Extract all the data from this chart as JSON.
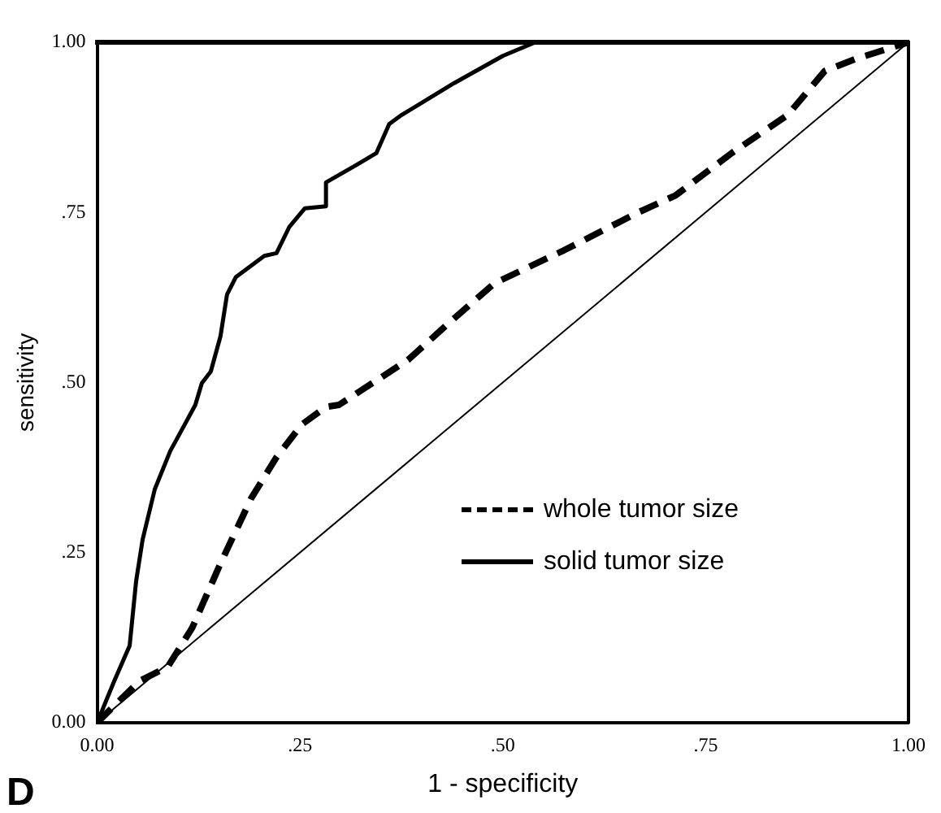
{
  "chart_data": {
    "type": "line",
    "xlabel": "1 - specificity",
    "ylabel": "sensitivity",
    "annotations": [
      "D"
    ],
    "xlim": [
      0,
      1
    ],
    "ylim": [
      0,
      1
    ],
    "xticks": [
      {
        "value": 0,
        "label": "0.00"
      },
      {
        "value": 0.25,
        "label": ".25"
      },
      {
        "value": 0.5,
        "label": ".50"
      },
      {
        "value": 0.75,
        "label": ".75"
      },
      {
        "value": 1,
        "label": "1.00"
      }
    ],
    "yticks": [
      {
        "value": 0,
        "label": "0.00"
      },
      {
        "value": 0.25,
        "label": ".25"
      },
      {
        "value": 0.5,
        "label": ".50"
      },
      {
        "value": 0.75,
        "label": ".75"
      },
      {
        "value": 1,
        "label": "1.00"
      }
    ],
    "grid": false,
    "legend": "bottom",
    "marker": "none",
    "series": [
      {
        "name": "whole tumor size",
        "color": "#000000",
        "line_style": "dashed",
        "x": [
          0,
          0.052,
          0.087,
          0.117,
          0.152,
          0.19,
          0.221,
          0.252,
          0.282,
          0.298,
          0.383,
          0.436,
          0.49,
          0.575,
          0.667,
          0.713,
          0.782,
          0.851,
          0.897,
          0.936,
          1
        ],
        "values": [
          0,
          0.061,
          0.082,
          0.139,
          0.234,
          0.33,
          0.39,
          0.438,
          0.464,
          0.467,
          0.533,
          0.59,
          0.646,
          0.694,
          0.75,
          0.775,
          0.837,
          0.893,
          0.958,
          0.976,
          1
        ]
      },
      {
        "name": "solid tumor size",
        "color": "#000000",
        "line_style": "solid",
        "x": [
          0,
          0.012,
          0.021,
          0.04,
          0.048,
          0.056,
          0.071,
          0.09,
          0.106,
          0.121,
          0.129,
          0.14,
          0.152,
          0.16,
          0.171,
          0.206,
          0.221,
          0.237,
          0.256,
          0.282,
          0.282,
          0.32,
          0.344,
          0.36,
          0.375,
          0.44,
          0.5,
          0.54,
          1
        ],
        "values": [
          0,
          0.035,
          0.061,
          0.113,
          0.208,
          0.269,
          0.343,
          0.399,
          0.434,
          0.467,
          0.499,
          0.516,
          0.568,
          0.629,
          0.655,
          0.686,
          0.69,
          0.729,
          0.756,
          0.759,
          0.794,
          0.82,
          0.837,
          0.88,
          0.893,
          0.94,
          0.98,
          1,
          1
        ]
      },
      {
        "color": "#000000",
        "line_style": "solid",
        "x": [
          0,
          1
        ],
        "values": [
          0,
          1
        ]
      }
    ]
  }
}
